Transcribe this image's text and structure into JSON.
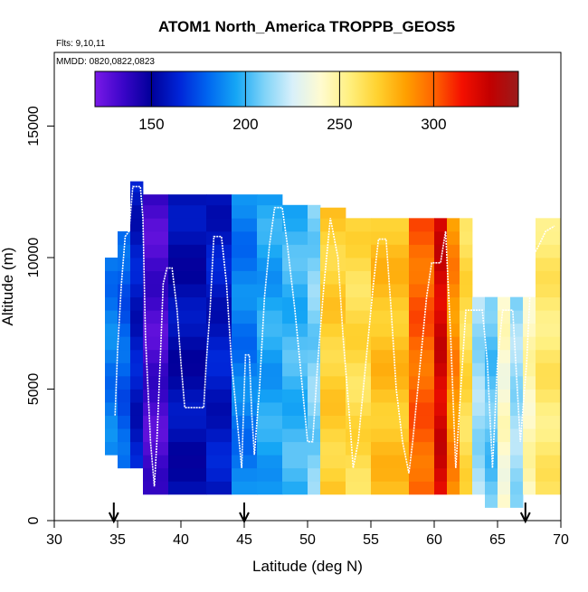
{
  "chart_data": {
    "type": "heatmap",
    "title": "ATOM1 North_America TROPPB_GEOS5",
    "annotations": [
      "Flts: 9,10,11",
      "MMDD: 0820,0822,0823"
    ],
    "xlabel": "Latitude (deg N)",
    "ylabel": "Altitude (m)",
    "xlim": [
      30,
      70
    ],
    "ylim": [
      0,
      17800
    ],
    "x_ticks": [
      "30",
      "35",
      "40",
      "45",
      "50",
      "55",
      "60",
      "65",
      "70"
    ],
    "y_ticks": [
      "0",
      "5000",
      "10000",
      "15000"
    ],
    "colorbar": {
      "range": [
        120,
        345
      ],
      "ticks": [
        "150",
        "200",
        "250",
        "300"
      ],
      "colors": [
        "#7a19e8",
        "#3a05c8",
        "#00009a",
        "#0025d8",
        "#0066f0",
        "#15a6f5",
        "#7fd3f8",
        "#d8f0fa",
        "#fffbd0",
        "#fff080",
        "#ffd230",
        "#ffa000",
        "#ff6400",
        "#f41000",
        "#c20000",
        "#9a1b1b"
      ]
    },
    "arrows_latitude": [
      34.7,
      45.0,
      67.2
    ],
    "segments": [
      {
        "x0": 34,
        "x1": 35,
        "y0": 2500,
        "y1": 10000,
        "v": 185
      },
      {
        "x0": 35,
        "x1": 36,
        "y0": 2000,
        "y1": 11000,
        "v": 178
      },
      {
        "x0": 36,
        "x1": 37,
        "y0": 2000,
        "y1": 12900,
        "v": 160
      },
      {
        "x0": 37,
        "x1": 39,
        "y0": 1000,
        "y1": 12400,
        "v": 132
      },
      {
        "x0": 39,
        "x1": 42,
        "y0": 1000,
        "y1": 12400,
        "v": 155
      },
      {
        "x0": 42,
        "x1": 44,
        "y0": 1000,
        "y1": 12400,
        "v": 160
      },
      {
        "x0": 44,
        "x1": 46,
        "y0": 1000,
        "y1": 12400,
        "v": 185
      },
      {
        "x0": 46,
        "x1": 48,
        "y0": 1000,
        "y1": 12400,
        "v": 195
      },
      {
        "x0": 48,
        "x1": 50,
        "y0": 1000,
        "y1": 12000,
        "v": 200
      },
      {
        "x0": 50,
        "x1": 51,
        "y0": 1000,
        "y1": 12000,
        "v": 210
      },
      {
        "x0": 51,
        "x1": 53,
        "y0": 1000,
        "y1": 11900,
        "v": 270
      },
      {
        "x0": 53,
        "x1": 55,
        "y0": 1000,
        "y1": 11500,
        "v": 265
      },
      {
        "x0": 55,
        "x1": 58,
        "y0": 1000,
        "y1": 11500,
        "v": 275
      },
      {
        "x0": 58,
        "x1": 60,
        "y0": 1000,
        "y1": 11500,
        "v": 300
      },
      {
        "x0": 60,
        "x1": 61,
        "y0": 1000,
        "y1": 11500,
        "v": 325
      },
      {
        "x0": 61,
        "x1": 62,
        "y0": 1000,
        "y1": 11500,
        "v": 290
      },
      {
        "x0": 62,
        "x1": 63,
        "y0": 1000,
        "y1": 11500,
        "v": 265
      },
      {
        "x0": 63,
        "x1": 64,
        "y0": 1000,
        "y1": 8500,
        "v": 215
      },
      {
        "x0": 64,
        "x1": 65,
        "y0": 500,
        "y1": 8500,
        "v": 205
      },
      {
        "x0": 65,
        "x1": 66,
        "y0": 500,
        "y1": 8500,
        "v": 240
      },
      {
        "x0": 66,
        "x1": 67,
        "y0": 500,
        "y1": 8500,
        "v": 215
      },
      {
        "x0": 67,
        "x1": 68,
        "y0": 1000,
        "y1": 8500,
        "v": 245
      },
      {
        "x0": 68,
        "x1": 70,
        "y0": 1000,
        "y1": 11500,
        "v": 258
      }
    ],
    "flight_track": [
      [
        34.8,
        4000
      ],
      [
        35.0,
        6500
      ],
      [
        35.3,
        9000
      ],
      [
        35.6,
        10800
      ],
      [
        35.9,
        11000
      ],
      [
        36.2,
        12700
      ],
      [
        36.8,
        12700
      ],
      [
        37.0,
        11500
      ],
      [
        37.2,
        7000
      ],
      [
        37.6,
        3000
      ],
      [
        37.9,
        1300
      ],
      [
        38.1,
        3000
      ],
      [
        38.4,
        6500
      ],
      [
        38.6,
        9000
      ],
      [
        38.9,
        9600
      ],
      [
        39.3,
        9600
      ],
      [
        39.7,
        8000
      ],
      [
        40.0,
        6000
      ],
      [
        40.3,
        4300
      ],
      [
        41.8,
        4300
      ],
      [
        42.0,
        6000
      ],
      [
        42.3,
        8000
      ],
      [
        42.6,
        10800
      ],
      [
        43.2,
        10800
      ],
      [
        43.6,
        9000
      ],
      [
        44.0,
        6000
      ],
      [
        44.8,
        2000
      ],
      [
        45.0,
        5000
      ],
      [
        45.1,
        6300
      ],
      [
        45.4,
        6300
      ],
      [
        45.6,
        4000
      ],
      [
        45.8,
        2500
      ],
      [
        46.2,
        5000
      ],
      [
        46.6,
        8500
      ],
      [
        47.0,
        10500
      ],
      [
        47.4,
        11900
      ],
      [
        48.0,
        11900
      ],
      [
        48.4,
        10500
      ],
      [
        49.0,
        8000
      ],
      [
        49.6,
        5000
      ],
      [
        50.0,
        3000
      ],
      [
        50.4,
        3000
      ],
      [
        50.8,
        6000
      ],
      [
        51.3,
        9000
      ],
      [
        51.8,
        11500
      ],
      [
        52.4,
        10000
      ],
      [
        52.8,
        7000
      ],
      [
        53.3,
        4000
      ],
      [
        53.6,
        2000
      ],
      [
        54.0,
        3000
      ],
      [
        54.6,
        6000
      ],
      [
        55.2,
        9000
      ],
      [
        55.6,
        10700
      ],
      [
        56.2,
        10700
      ],
      [
        56.6,
        8000
      ],
      [
        57.0,
        5000
      ],
      [
        57.5,
        3000
      ],
      [
        58.0,
        1800
      ],
      [
        58.3,
        3000
      ],
      [
        58.9,
        6000
      ],
      [
        59.4,
        8500
      ],
      [
        59.8,
        9800
      ],
      [
        60.5,
        9800
      ],
      [
        60.9,
        11000
      ],
      [
        61.3,
        7000
      ],
      [
        61.7,
        2000
      ],
      [
        62.5,
        8000
      ],
      [
        63.8,
        8000
      ],
      [
        64.2,
        6000
      ],
      [
        64.6,
        2000
      ],
      [
        65.0,
        6000
      ],
      [
        65.4,
        8000
      ],
      [
        66.2,
        8000
      ],
      [
        66.8,
        3000
      ],
      [
        67.3,
        6000
      ],
      [
        67.7,
        10000
      ],
      [
        68.2,
        10400
      ],
      [
        68.8,
        11000
      ],
      [
        69.5,
        11200
      ]
    ]
  }
}
